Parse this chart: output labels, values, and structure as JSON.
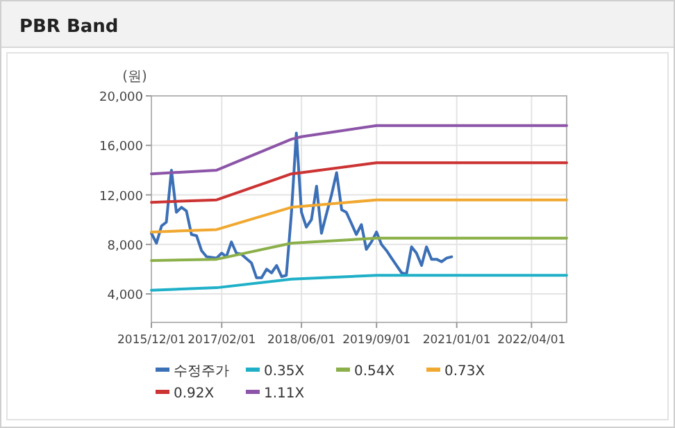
{
  "chart_data": {
    "type": "line",
    "title": "PBR Band",
    "ylabel": "(원)",
    "xlim": [
      "2015-12-01",
      "2022-11-01"
    ],
    "xticks": [
      {
        "value": "2015-12-01",
        "label": "2015/12/01"
      },
      {
        "value": "2017-02-01",
        "label": "2017/02/01"
      },
      {
        "value": "2018-06-01",
        "label": "2018/06/01"
      },
      {
        "value": "2019-09-01",
        "label": "2019/09/01"
      },
      {
        "value": "2021-01-01",
        "label": "2021/01/01"
      },
      {
        "value": "2022-04-01",
        "label": "2022/04/01"
      }
    ],
    "ylim": [
      1700,
      20000
    ],
    "yticks": [
      {
        "value": 4000,
        "label": "4,000"
      },
      {
        "value": 8000,
        "label": "8,000"
      },
      {
        "value": 12000,
        "label": "12,000"
      },
      {
        "value": 16000,
        "label": "16,000"
      },
      {
        "value": 20000,
        "label": "20,000"
      }
    ],
    "grid": true,
    "legend": "bottom",
    "marker": "none",
    "line_style": "solid",
    "series": [
      {
        "name": "수정주가",
        "color": "#3b6fb6",
        "x": [
          "2015-12",
          "2016-01",
          "2016-02",
          "2016-03",
          "2016-04",
          "2016-05",
          "2016-06",
          "2016-07",
          "2016-08",
          "2016-09",
          "2016-10",
          "2016-11",
          "2017-01",
          "2017-02",
          "2017-03",
          "2017-04",
          "2017-05",
          "2017-06",
          "2017-08",
          "2017-09",
          "2017-10",
          "2017-11",
          "2017-12",
          "2018-01",
          "2018-02",
          "2018-03",
          "2018-04",
          "2018-05",
          "2018-06",
          "2018-07",
          "2018-08",
          "2018-09",
          "2018-10",
          "2018-11",
          "2018-12",
          "2019-01",
          "2019-02",
          "2019-03",
          "2019-04",
          "2019-05",
          "2019-06",
          "2019-07",
          "2019-08",
          "2019-09",
          "2019-10",
          "2019-11",
          "2019-12",
          "2020-01",
          "2020-02",
          "2020-03",
          "2020-04",
          "2020-05",
          "2020-06",
          "2020-07",
          "2020-08",
          "2020-09",
          "2020-10",
          "2020-11",
          "2020-12"
        ],
        "values": [
          8900,
          8100,
          9500,
          9800,
          14000,
          10600,
          11000,
          10700,
          8800,
          8700,
          7500,
          7000,
          6900,
          7300,
          7000,
          8200,
          7300,
          7200,
          6500,
          5300,
          5300,
          6000,
          5700,
          6300,
          5400,
          5500,
          10500,
          17000,
          10600,
          9400,
          10000,
          12700,
          8900,
          10500,
          12000,
          13800,
          10800,
          10600,
          9700,
          8800,
          9600,
          7600,
          8200,
          9000,
          8000,
          7500,
          6900,
          6300,
          5700,
          5600,
          7800,
          7300,
          6300,
          7800,
          6800,
          6800,
          6600,
          6900,
          7000
        ]
      },
      {
        "name": "0.35X",
        "color": "#1fb0c8",
        "x": [
          "2015-12",
          "2017-01",
          "2018-04",
          "2019-09",
          "2022-11"
        ],
        "values": [
          4300,
          4500,
          5200,
          5500,
          5500
        ]
      },
      {
        "name": "0.54X",
        "color": "#8bb04a",
        "x": [
          "2015-12",
          "2017-01",
          "2018-04",
          "2019-09",
          "2022-11"
        ],
        "values": [
          6700,
          6800,
          8100,
          8500,
          8500
        ]
      },
      {
        "name": "0.73X",
        "color": "#f0a830",
        "x": [
          "2015-12",
          "2017-01",
          "2018-04",
          "2019-09",
          "2022-11"
        ],
        "values": [
          9000,
          9200,
          11000,
          11600,
          11600
        ]
      },
      {
        "name": "0.92X",
        "color": "#cc3333",
        "x": [
          "2015-12",
          "2017-01",
          "2018-04",
          "2018-06",
          "2019-09",
          "2022-11"
        ],
        "values": [
          11400,
          11600,
          13700,
          13800,
          14600,
          14600
        ]
      },
      {
        "name": "1.11X",
        "color": "#8c55a8",
        "x": [
          "2015-12",
          "2017-01",
          "2018-04",
          "2018-06",
          "2019-09",
          "2022-11"
        ],
        "values": [
          13700,
          14000,
          16500,
          16700,
          17600,
          17600
        ]
      }
    ]
  }
}
